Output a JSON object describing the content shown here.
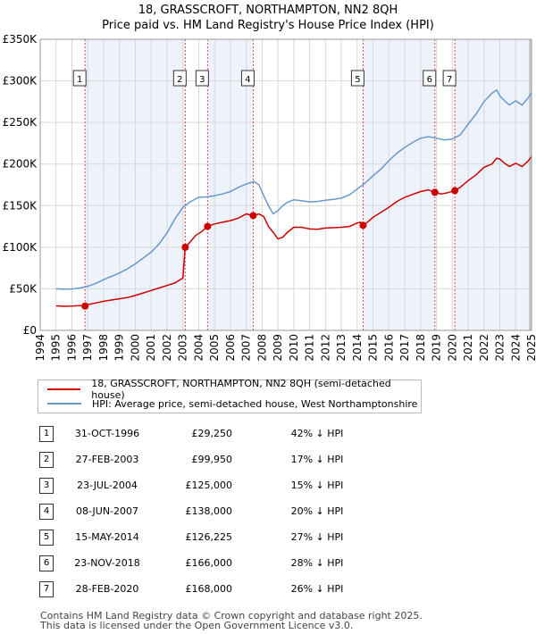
{
  "title_line1": "18, GRASSCROFT, NORTHAMPTON, NN2 8QH",
  "title_line2": "Price paid vs. HM Land Registry's House Price Index (HPI)",
  "colors": {
    "property": "#cc0000",
    "hpi": "#6699cc",
    "grid": "#d8d8d8",
    "shade": "#eef2fa"
  },
  "chart_data": {
    "type": "line",
    "xlim": [
      1994,
      2025
    ],
    "ylim": [
      0,
      350000
    ],
    "y_ticks": [
      0,
      50000,
      100000,
      150000,
      200000,
      250000,
      300000,
      350000
    ],
    "y_tick_labels": [
      "£0",
      "£50K",
      "£100K",
      "£150K",
      "£200K",
      "£250K",
      "£300K",
      "£350K"
    ],
    "x_ticks": [
      1994,
      1995,
      1996,
      1997,
      1998,
      1999,
      2000,
      2001,
      2002,
      2003,
      2004,
      2005,
      2006,
      2007,
      2008,
      2009,
      2010,
      2011,
      2012,
      2013,
      2014,
      2015,
      2016,
      2017,
      2018,
      2019,
      2020,
      2021,
      2022,
      2023,
      2024,
      2025
    ],
    "x_tick_labels": [
      "1994",
      "1995",
      "1996",
      "1997",
      "1998",
      "1999",
      "2000",
      "2001",
      "2002",
      "2003",
      "2004",
      "2005",
      "2006",
      "2007",
      "2008",
      "2009",
      "2010",
      "2011",
      "2012",
      "2013",
      "2014",
      "2015",
      "2016",
      "2017",
      "2018",
      "2019",
      "2020",
      "2021",
      "2022",
      "2023",
      "2024",
      "2025"
    ],
    "series": [
      {
        "name": "18, GRASSCROFT, NORTHAMPTON, NN2 8QH (semi-detached house)",
        "color": "#cc0000",
        "x": [
          1995.0,
          1995.5,
          1996.0,
          1996.5,
          1996.83,
          1997.0,
          1997.5,
          1998.0,
          1998.5,
          1999.0,
          1999.5,
          2000.0,
          2000.5,
          2001.0,
          2001.5,
          2002.0,
          2002.5,
          2003.0,
          2003.15,
          2003.4,
          2003.8,
          2004.2,
          2004.56,
          2005.0,
          2005.5,
          2006.0,
          2006.5,
          2007.0,
          2007.44,
          2007.8,
          2008.1,
          2008.4,
          2008.7,
          2009.0,
          2009.3,
          2009.6,
          2010.0,
          2010.5,
          2011.0,
          2011.5,
          2012.0,
          2012.5,
          2013.0,
          2013.5,
          2014.0,
          2014.2,
          2014.37,
          2014.7,
          2015.0,
          2015.5,
          2016.0,
          2016.5,
          2017.0,
          2017.5,
          2018.0,
          2018.5,
          2018.9,
          2019.3,
          2019.7,
          2020.16,
          2020.5,
          2021.0,
          2021.5,
          2022.0,
          2022.5,
          2022.8,
          2023.0,
          2023.3,
          2023.6,
          2024.0,
          2024.4,
          2024.8,
          2025.0
        ],
        "y": [
          29500,
          29000,
          29200,
          29800,
          29250,
          31000,
          33000,
          35000,
          36500,
          38000,
          39500,
          42000,
          45000,
          48000,
          51000,
          54000,
          57000,
          63000,
          99950,
          105000,
          114000,
          119000,
          125000,
          128000,
          130000,
          132000,
          135000,
          140000,
          138000,
          140000,
          137000,
          125000,
          118000,
          110000,
          112000,
          118000,
          124000,
          124000,
          122000,
          121500,
          123000,
          123500,
          124000,
          125000,
          129000,
          130000,
          126225,
          131000,
          136000,
          142000,
          148000,
          155000,
          160000,
          163500,
          167000,
          169000,
          166000,
          164000,
          165500,
          168000,
          172000,
          180000,
          187000,
          196000,
          200000,
          207000,
          206000,
          201000,
          197000,
          201000,
          197000,
          204000,
          209000
        ]
      },
      {
        "name": "HPI: Average price, semi-detached house, West Northamptonshire",
        "color": "#6699cc",
        "x": [
          1995.0,
          1995.5,
          1996.0,
          1996.5,
          1997.0,
          1997.5,
          1998.0,
          1998.5,
          1999.0,
          1999.5,
          2000.0,
          2000.5,
          2001.0,
          2001.5,
          2002.0,
          2002.5,
          2003.0,
          2003.5,
          2004.0,
          2004.5,
          2005.0,
          2005.5,
          2006.0,
          2006.5,
          2007.0,
          2007.5,
          2007.8,
          2008.1,
          2008.4,
          2008.7,
          2009.0,
          2009.3,
          2009.6,
          2010.0,
          2010.5,
          2011.0,
          2011.5,
          2012.0,
          2012.5,
          2013.0,
          2013.5,
          2014.0,
          2014.5,
          2015.0,
          2015.5,
          2016.0,
          2016.5,
          2017.0,
          2017.5,
          2018.0,
          2018.5,
          2019.0,
          2019.5,
          2020.0,
          2020.5,
          2021.0,
          2021.5,
          2022.0,
          2022.5,
          2022.8,
          2023.0,
          2023.3,
          2023.6,
          2024.0,
          2024.4,
          2024.8,
          2025.0
        ],
        "y": [
          50000,
          49500,
          49800,
          51000,
          53000,
          56500,
          61000,
          65000,
          69000,
          74000,
          80000,
          87000,
          94000,
          104000,
          117000,
          134000,
          148000,
          155000,
          160000,
          160500,
          162000,
          164000,
          167000,
          172000,
          176000,
          179000,
          175000,
          162000,
          150000,
          140000,
          144000,
          150000,
          154000,
          157000,
          156000,
          154500,
          155000,
          156500,
          157500,
          159000,
          163000,
          170000,
          177000,
          186000,
          194000,
          204000,
          213000,
          220000,
          226000,
          231000,
          233000,
          231000,
          229000,
          230000,
          235000,
          248000,
          260000,
          275000,
          285000,
          289000,
          282000,
          276000,
          271000,
          276000,
          271000,
          280000,
          286000
        ]
      }
    ],
    "sales": [
      {
        "num": "1",
        "x": 1996.83,
        "price": 29250,
        "date": "31-OCT-1996",
        "price_label": "£29,250",
        "hpi": "42% ↓ HPI"
      },
      {
        "num": "2",
        "x": 2003.15,
        "price": 99950,
        "date": "27-FEB-2003",
        "price_label": "£99,950",
        "hpi": "17% ↓ HPI"
      },
      {
        "num": "3",
        "x": 2004.56,
        "price": 125000,
        "date": "23-JUL-2004",
        "price_label": "£125,000",
        "hpi": "15% ↓ HPI"
      },
      {
        "num": "4",
        "x": 2007.44,
        "price": 138000,
        "date": "08-JUN-2007",
        "price_label": "£138,000",
        "hpi": "20% ↓ HPI"
      },
      {
        "num": "5",
        "x": 2014.37,
        "price": 126225,
        "date": "15-MAY-2014",
        "price_label": "£126,225",
        "hpi": "27% ↓ HPI"
      },
      {
        "num": "6",
        "x": 2018.9,
        "price": 166000,
        "date": "23-NOV-2018",
        "price_label": "£166,000",
        "hpi": "28% ↓ HPI"
      },
      {
        "num": "7",
        "x": 2020.16,
        "price": 168000,
        "date": "28-FEB-2020",
        "price_label": "£168,000",
        "hpi": "26% ↓ HPI"
      }
    ]
  },
  "legend": {
    "property": "18, GRASSCROFT, NORTHAMPTON, NN2 8QH (semi-detached house)",
    "hpi": "HPI: Average price, semi-detached house, West Northamptonshire"
  },
  "footer_line1": "Contains HM Land Registry data © Crown copyright and database right 2025.",
  "footer_line2": "This data is licensed under the Open Government Licence v3.0."
}
